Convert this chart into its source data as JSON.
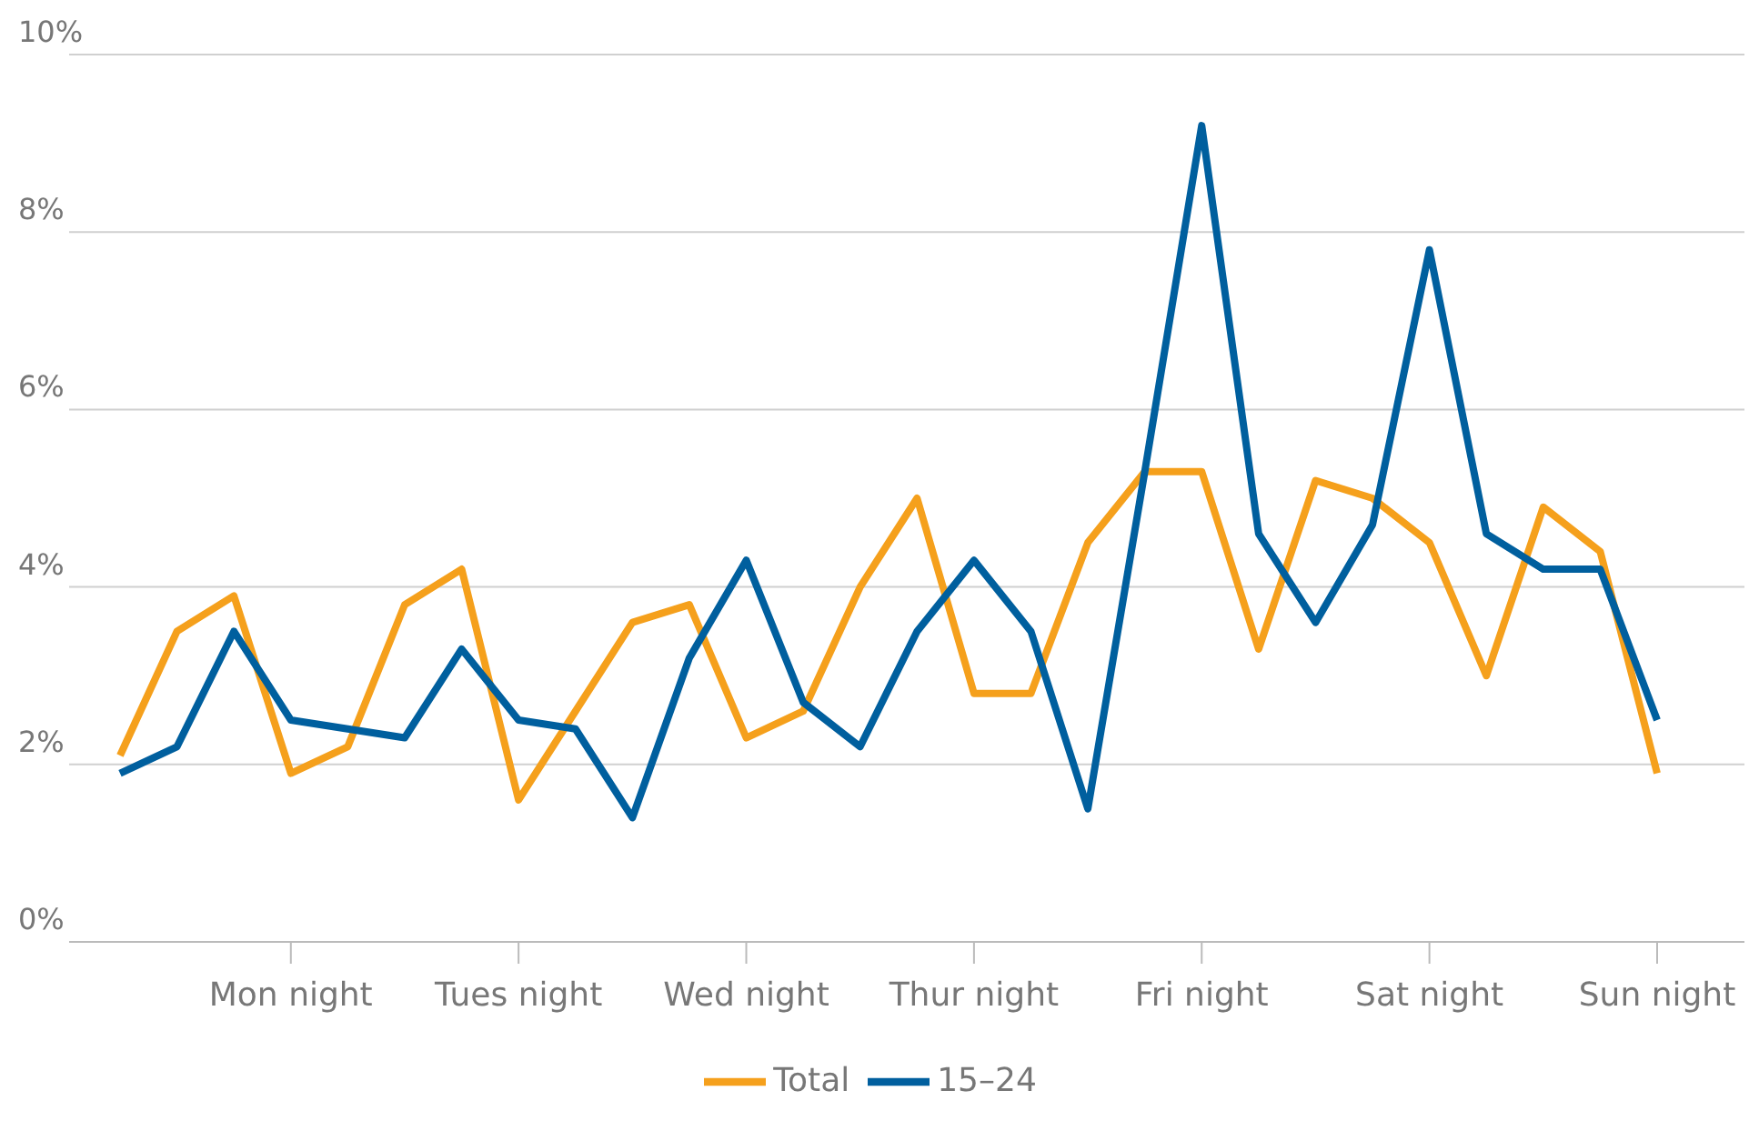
{
  "chart_data": {
    "type": "line",
    "categories": [
      null,
      null,
      null,
      "Mon night",
      null,
      null,
      null,
      "Tues night",
      null,
      null,
      null,
      "Wed night",
      null,
      null,
      null,
      "Thur night",
      null,
      null,
      null,
      "Fri night",
      null,
      null,
      null,
      "Sat night",
      null,
      null,
      null,
      "Sun night"
    ],
    "series": [
      {
        "name": "Total",
        "color": "#f5a01c",
        "values": [
          2.1,
          3.5,
          3.9,
          1.9,
          2.2,
          3.8,
          4.2,
          1.6,
          2.6,
          3.6,
          3.8,
          2.3,
          2.6,
          4.0,
          5.0,
          2.8,
          2.8,
          4.5,
          5.3,
          5.3,
          3.3,
          5.2,
          5.0,
          4.5,
          3.0,
          4.9,
          4.4,
          1.9
        ]
      },
      {
        "name": "15–24",
        "color": "#005f9e",
        "values": [
          1.9,
          2.2,
          3.5,
          2.5,
          2.4,
          2.3,
          3.3,
          2.5,
          2.4,
          1.4,
          3.2,
          4.3,
          2.7,
          2.2,
          3.5,
          4.3,
          3.5,
          1.5,
          5.3,
          9.2,
          4.6,
          3.6,
          4.7,
          7.8,
          4.6,
          4.2,
          4.2,
          2.5
        ]
      }
    ],
    "ylim": [
      0,
      10
    ],
    "yticks": [
      {
        "value": 0,
        "label": "0%"
      },
      {
        "value": 2,
        "label": "2%"
      },
      {
        "value": 4,
        "label": "4%"
      },
      {
        "value": 6,
        "label": "6%"
      },
      {
        "value": 8,
        "label": "8%"
      },
      {
        "value": 10,
        "label": "10%"
      }
    ],
    "grid": "y",
    "legend": "bottom",
    "marker": "none",
    "line_style": "solid"
  }
}
